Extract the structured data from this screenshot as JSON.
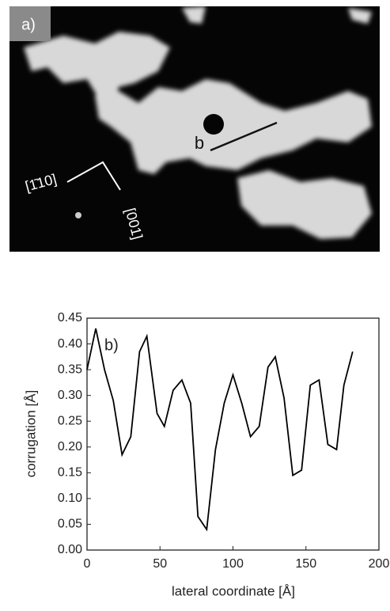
{
  "image": {
    "panel_label": "a)",
    "line_label": "b",
    "direction_1": "[1̄10]",
    "direction_2": "[001]"
  },
  "chart_data": {
    "type": "line",
    "annotation": "b)",
    "x_label": "lateral coordinate [Å]",
    "y_label": "corrugation [Å]",
    "xlim": [
      0,
      200
    ],
    "ylim": [
      0,
      0.45
    ],
    "xticks": [
      0,
      50,
      100,
      150,
      200
    ],
    "yticks": [
      {
        "value": 0,
        "label": "0.00"
      },
      0.05,
      {
        "value": 0.1,
        "label": "0.10"
      },
      0.15,
      {
        "value": 0.2,
        "label": "0.20"
      },
      0.25,
      {
        "value": 0.3,
        "label": "0.30"
      },
      0.35,
      {
        "value": 0.4,
        "label": "0.40"
      },
      0.45
    ],
    "x": [
      0,
      6,
      12,
      18,
      24,
      30,
      36,
      41,
      48,
      53,
      59,
      65,
      71,
      76,
      82,
      88,
      94,
      100,
      106,
      112,
      118,
      124,
      129,
      135,
      141,
      147,
      153,
      159,
      165,
      171,
      176,
      182
    ],
    "series": [
      {
        "color": "#000000",
        "values": [
          0.35,
          0.43,
          0.35,
          0.29,
          0.185,
          0.22,
          0.385,
          0.415,
          0.265,
          0.24,
          0.31,
          0.33,
          0.285,
          0.065,
          0.04,
          0.195,
          0.285,
          0.34,
          0.285,
          0.22,
          0.24,
          0.355,
          0.375,
          0.295,
          0.145,
          0.155,
          0.32,
          0.33,
          0.205,
          0.195,
          0.32,
          0.385
        ]
      }
    ]
  }
}
